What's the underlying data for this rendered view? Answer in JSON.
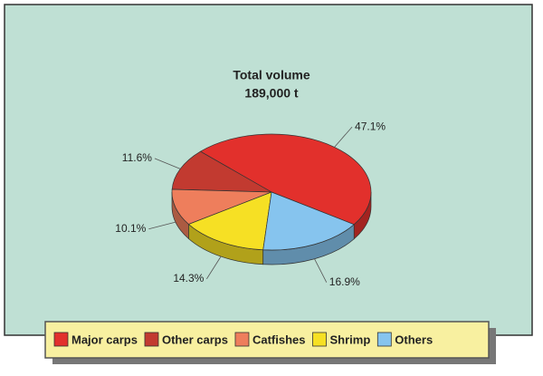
{
  "chart_data": {
    "type": "pie",
    "title": "Total volume",
    "subtitle": "189,000 t",
    "categories": [
      "Major carps",
      "Other carps",
      "Catfishes",
      "Shrimp",
      "Others"
    ],
    "values": [
      47.1,
      11.6,
      10.1,
      14.3,
      16.9
    ],
    "value_labels": [
      "47.1%",
      "11.6%",
      "10.1%",
      "14.3%",
      "16.9%"
    ],
    "colors": [
      "#e2302c",
      "#c23a30",
      "#ee7e5c",
      "#f6e024",
      "#86c4ee"
    ]
  }
}
